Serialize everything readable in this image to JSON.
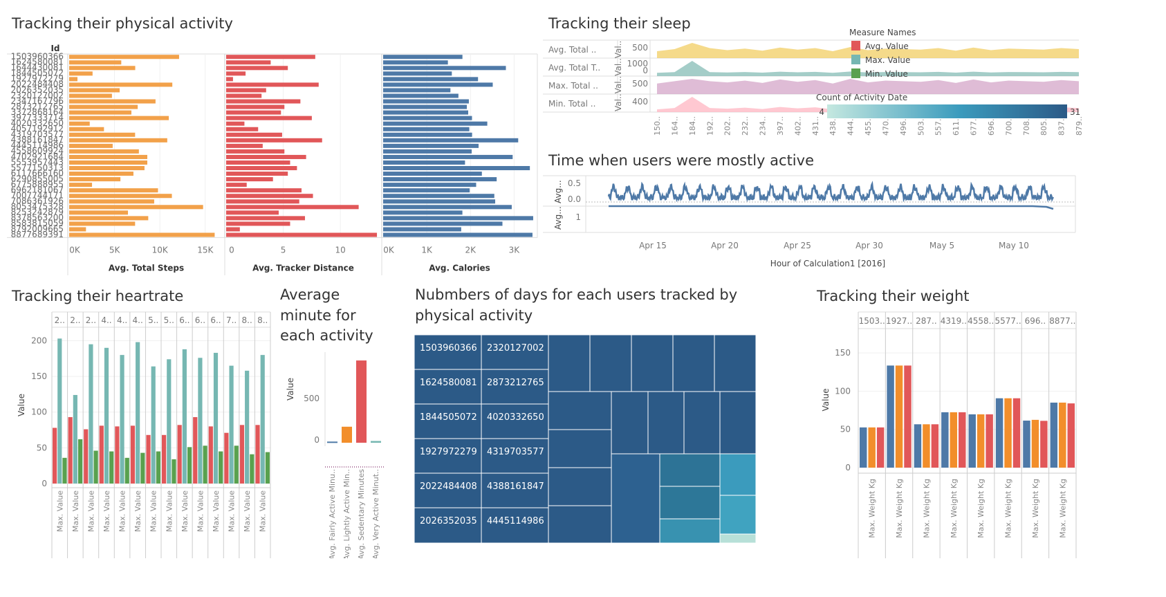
{
  "titles": {
    "activity": "Tracking their physical activity",
    "sleep": "Tracking their sleep",
    "active_time": "Time when users were mostly active",
    "heartrate": "Tracking their heartrate",
    "avg_minute": "Average minute for each activity",
    "days": "Nubmbers of days for each users tracked by physical activity",
    "weight": "Tracking their weight"
  },
  "colors": {
    "orange": "#f2a14a",
    "red": "#e15759",
    "blue": "#4e79a7",
    "teal": "#76b7b2",
    "green": "#59a14f",
    "heat_light": "#c5e8e0",
    "heat_dark": "#2c5a87"
  },
  "chart_data": [
    {
      "id": "activity",
      "type": "bar",
      "orientation": "horizontal",
      "row_header": "Id",
      "categories": [
        "1503960366",
        "1624580081",
        "1644430081",
        "1844505072",
        "1927972279",
        "2022484408",
        "2026352035",
        "2320127002",
        "2347167796",
        "2873212765",
        "3372868164",
        "3977333714",
        "4020332650",
        "4057192912",
        "4319703577",
        "4388161847",
        "4445114986",
        "4558609924",
        "4702921684",
        "5553957443",
        "5577150313",
        "6117666160",
        "6290855005",
        "6775888955",
        "6962181067",
        "7007744171",
        "7086361926",
        "8053475328",
        "8253242879",
        "8378563200",
        "8583815059",
        "8792009665",
        "8877689391"
      ],
      "panels": [
        {
          "label": "Avg. Total Steps",
          "ticks": [
            "0K",
            "5K",
            "10K",
            "15K"
          ],
          "tick_values": [
            0,
            5000,
            10000,
            15000
          ],
          "max": 17000,
          "values": [
            12117,
            5744,
            7283,
            2580,
            916,
            11371,
            5567,
            4717,
            9520,
            7556,
            6862,
            10984,
            2267,
            3838,
            7268,
            10813,
            4797,
            7686,
            8613,
            8613,
            8305,
            7085,
            5650,
            2520,
            9795,
            11323,
            9372,
            14763,
            6482,
            8718,
            7268,
            1854,
            16040
          ]
        },
        {
          "label": "Avg. Tracker Distance",
          "ticks": [
            "0",
            "5",
            "10"
          ],
          "tick_values": [
            0,
            5,
            10
          ],
          "max": 13.5,
          "values": [
            7.8,
            3.9,
            5.4,
            1.7,
            0.6,
            8.1,
            3.5,
            3.1,
            6.5,
            5.1,
            4.8,
            7.5,
            1.6,
            2.8,
            4.9,
            8.4,
            3.2,
            5.1,
            7.0,
            5.6,
            6.2,
            5.4,
            4.1,
            1.8,
            6.6,
            7.6,
            6.4,
            11.6,
            4.6,
            6.9,
            5.6,
            1.2,
            13.2
          ]
        },
        {
          "label": "Avg. Calories",
          "ticks": [
            "0K",
            "1K",
            "2K",
            "3K"
          ],
          "tick_values": [
            0,
            1000,
            2000,
            3000
          ],
          "max": 3500,
          "values": [
            1816,
            1483,
            2811,
            1573,
            2173,
            2510,
            1541,
            1724,
            1963,
            1917,
            1948,
            2035,
            2385,
            1973,
            2037,
            3093,
            2186,
            2028,
            2966,
            1875,
            3360,
            2261,
            2600,
            2130,
            1982,
            2546,
            2566,
            2945,
            1815,
            3436,
            2732,
            1788,
            3420
          ]
        }
      ]
    },
    {
      "id": "sleep",
      "type": "area",
      "rows": [
        "Avg. Total ..",
        "Avg. Total T..",
        "Max. Total ..",
        "Min. Total .."
      ],
      "row_ticks": [
        [
          "500"
        ],
        [
          "1000",
          "0"
        ],
        [
          "500"
        ],
        [
          "400"
        ]
      ],
      "row_axis_label": "Val..Val..Val..Val..",
      "row_colors": [
        "#f1ce63",
        "#86bcb6",
        "#d4a6c8",
        "#ffb6c1"
      ],
      "x_labels": [
        "150..",
        "164..",
        "184..",
        "192..",
        "202..",
        "232..",
        "234..",
        "397..",
        "402..",
        "431..",
        "438..",
        "444..",
        "455..",
        "470..",
        "496..",
        "503..",
        "557..",
        "611..",
        "677..",
        "696..",
        "700..",
        "708..",
        "805..",
        "837..",
        "879.."
      ],
      "series": [
        {
          "name": "Avg. Total ..",
          "values": [
            360,
            400,
            520,
            420,
            380,
            410,
            370,
            430,
            390,
            420,
            360,
            440,
            380,
            410,
            400,
            390,
            420,
            370,
            430,
            380,
            410,
            400,
            390,
            420,
            400
          ]
        },
        {
          "name": "Avg. Total T..",
          "values": [
            380,
            420,
            1100,
            420,
            400,
            430,
            390,
            450,
            410,
            440,
            380,
            460,
            400,
            430,
            420,
            410,
            440,
            390,
            450,
            400,
            430,
            420,
            410,
            440,
            420
          ]
        },
        {
          "name": "Max. Total ..",
          "values": [
            520,
            560,
            600,
            560,
            540,
            570,
            530,
            590,
            550,
            580,
            520,
            600,
            540,
            570,
            560,
            550,
            580,
            530,
            590,
            540,
            570,
            560,
            550,
            580,
            560
          ]
        },
        {
          "name": "Min. Total ..",
          "values": [
            120,
            160,
            480,
            160,
            140,
            170,
            130,
            190,
            150,
            180,
            120,
            200,
            140,
            170,
            160,
            150,
            180,
            130,
            190,
            140,
            170,
            160,
            150,
            180,
            160
          ]
        }
      ],
      "legend": {
        "title": "Measure Names",
        "items": [
          {
            "name": "Avg. Value",
            "color": "#e15759"
          },
          {
            "name": "Max. Value",
            "color": "#76b7b2"
          },
          {
            "name": "Min. Value",
            "color": "#59a14f"
          }
        ]
      },
      "color_legend": {
        "title": "Count of Activity Date",
        "min_label": "4",
        "max_label": "31"
      }
    },
    {
      "id": "active_time",
      "type": "line",
      "rows": [
        "Avg...",
        "Avg..."
      ],
      "row1_ticks": [
        "0.5",
        "0.0"
      ],
      "row2_ticks": [
        "1"
      ],
      "x_labels": [
        "Apr 15",
        "Apr 20",
        "Apr 25",
        "Apr 30",
        "May 5",
        "May 10"
      ],
      "xlabel": "Hour of Calculation1 [2016]",
      "days": 31
    },
    {
      "id": "heartrate",
      "type": "bar",
      "col_headers": [
        "2..",
        "2..",
        "2..",
        "4..",
        "4..",
        "4..",
        "5..",
        "5..",
        "6..",
        "6..",
        "6..",
        "7..",
        "8..",
        "8.."
      ],
      "ylabel": "Value",
      "yticks": [
        "0",
        "50",
        "100",
        "150",
        "200"
      ],
      "ytick_values": [
        0,
        50,
        100,
        150,
        200
      ],
      "ymax": 215,
      "x_label": "Max. Value",
      "avg": [
        78,
        93,
        76,
        81,
        80,
        81,
        68,
        68,
        82,
        93,
        80,
        71,
        82,
        82
      ],
      "max": [
        203,
        124,
        195,
        190,
        180,
        198,
        164,
        174,
        188,
        176,
        183,
        165,
        158,
        180
      ],
      "min": [
        36,
        62,
        46,
        45,
        36,
        43,
        45,
        34,
        51,
        53,
        45,
        53,
        41,
        44
      ]
    },
    {
      "id": "avg_minute",
      "type": "bar",
      "ylabel": "Value",
      "yticks": [
        "0",
        "500"
      ],
      "ytick_values": [
        0,
        500
      ],
      "categories": [
        "Avg. Fairly Active Minu..",
        "Avg. Lightly Active Min..",
        "Avg. Sedentary Minutes",
        "Avg. Very Active Minut.."
      ],
      "values": [
        14,
        193,
        991,
        21
      ]
    },
    {
      "id": "days",
      "type": "heatmap",
      "left_cells": [
        [
          "1503960366",
          "2320127002"
        ],
        [
          "1624580081",
          "2873212765"
        ],
        [
          "1844505072",
          "4020332650"
        ],
        [
          "1927972279",
          "4319703577"
        ],
        [
          "2022484408",
          "4388161847"
        ],
        [
          "2026352035",
          "4445114986"
        ]
      ],
      "color_range": [
        4,
        31
      ]
    },
    {
      "id": "weight",
      "type": "bar",
      "col_headers": [
        "1503..",
        "1927..",
        "287..",
        "4319..",
        "4558..",
        "5577..",
        "696..",
        "8877.."
      ],
      "ylabel": "Value",
      "yticks": [
        "0",
        "50",
        "100",
        "150"
      ],
      "ytick_values": [
        0,
        50,
        100,
        150
      ],
      "ymax": 180,
      "x_label": "Max. Weight Kg",
      "blue": [
        52.6,
        133.5,
        56.7,
        72.4,
        69.7,
        90.7,
        61.5,
        85.0
      ],
      "orange": [
        52.6,
        133.5,
        56.7,
        72.4,
        69.7,
        90.7,
        62.5,
        85.0
      ],
      "red": [
        52.6,
        133.5,
        56.7,
        72.4,
        69.7,
        90.7,
        61.2,
        84.0
      ]
    }
  ]
}
